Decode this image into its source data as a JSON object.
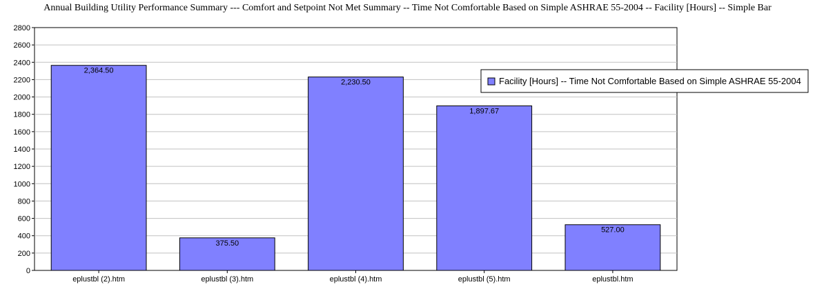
{
  "chart_data": {
    "type": "bar",
    "title": "Annual Building Utility Performance Summary --- Comfort and Setpoint Not Met Summary -- Time Not Comfortable Based on Simple ASHRAE 55-2004 -- Facility [Hours] -- Simple Bar",
    "categories": [
      "eplustbl (2).htm",
      "eplustbl (3).htm",
      "eplustbl (4).htm",
      "eplustbl (5).htm",
      "eplustbl.htm"
    ],
    "series": [
      {
        "name": "Facility [Hours] -- Time Not Comfortable Based on Simple ASHRAE 55-2004",
        "values": [
          2364.5,
          375.5,
          2230.5,
          1897.67,
          527.0
        ],
        "labels": [
          "2,364.50",
          "375.50",
          "2,230.50",
          "1,897.67",
          "527.00"
        ],
        "color": "#8080ff"
      }
    ],
    "ylim": [
      0,
      2800
    ],
    "yticks": [
      0,
      200,
      400,
      600,
      800,
      1000,
      1200,
      1400,
      1600,
      1800,
      2000,
      2200,
      2400,
      2600,
      2800
    ],
    "grid": true,
    "legend_position": "right"
  }
}
